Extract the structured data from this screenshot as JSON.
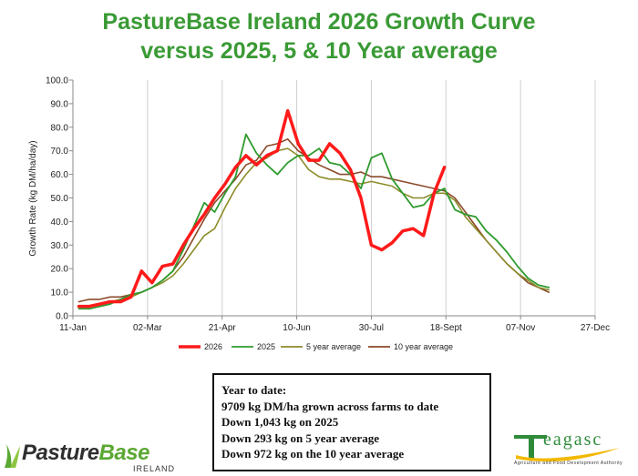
{
  "chart_data": {
    "type": "line",
    "title_line1": "PastureBase Ireland 2026 Growth Curve",
    "title_line2": "versus 2025, 5 & 10 Year average",
    "ylabel": "Growth Rate (kg DM/ha/day)",
    "xlabel": "",
    "ylim": [
      0,
      100
    ],
    "y_ticks": [
      "0.0",
      "10.0",
      "20.0",
      "30.0",
      "40.0",
      "50.0",
      "60.0",
      "70.0",
      "80.0",
      "90.0",
      "100.0"
    ],
    "x_ticks": [
      "11-Jan",
      "02-Mar",
      "21-Apr",
      "10-Jun",
      "30-Jul",
      "18-Sept",
      "07-Nov",
      "27-Dec"
    ],
    "grid": "vertical",
    "legend_position": "bottom",
    "series": [
      {
        "name": "2026",
        "color": "#ff1a1a",
        "width": 3.5,
        "x": [
          "2026-01-15",
          "2026-01-22",
          "2026-01-29",
          "2026-02-05",
          "2026-02-12",
          "2026-02-19",
          "2026-02-26",
          "2026-03-05",
          "2026-03-12",
          "2026-03-19",
          "2026-03-26",
          "2026-04-02",
          "2026-04-09",
          "2026-04-16",
          "2026-04-23",
          "2026-04-30",
          "2026-05-07",
          "2026-05-14",
          "2026-05-21",
          "2026-05-28",
          "2026-06-04",
          "2026-06-11",
          "2026-06-18",
          "2026-06-25",
          "2026-07-02",
          "2026-07-09",
          "2026-07-16",
          "2026-07-23",
          "2026-07-30",
          "2026-08-06",
          "2026-08-13",
          "2026-08-20",
          "2026-08-27",
          "2026-09-03",
          "2026-09-10",
          "2026-09-17"
        ],
        "values": [
          4,
          4,
          5,
          6,
          6,
          8,
          19,
          14,
          21,
          22,
          30,
          37,
          43,
          50,
          56,
          63,
          68,
          64,
          68,
          70,
          87,
          73,
          66,
          66,
          73,
          69,
          62,
          50,
          30,
          28,
          31,
          36,
          37,
          34,
          52,
          63
        ]
      },
      {
        "name": "2025",
        "color": "#2e9b2e",
        "width": 1.8,
        "x": [
          "2026-01-15",
          "2026-01-22",
          "2026-01-29",
          "2026-02-05",
          "2026-02-12",
          "2026-02-19",
          "2026-02-26",
          "2026-03-05",
          "2026-03-12",
          "2026-03-19",
          "2026-03-26",
          "2026-04-02",
          "2026-04-09",
          "2026-04-16",
          "2026-04-23",
          "2026-04-30",
          "2026-05-07",
          "2026-05-14",
          "2026-05-21",
          "2026-05-28",
          "2026-06-04",
          "2026-06-11",
          "2026-06-18",
          "2026-06-25",
          "2026-07-02",
          "2026-07-09",
          "2026-07-16",
          "2026-07-23",
          "2026-07-30",
          "2026-08-06",
          "2026-08-13",
          "2026-08-20",
          "2026-08-27",
          "2026-09-03",
          "2026-09-10",
          "2026-09-17",
          "2026-09-24",
          "2026-10-01",
          "2026-10-08",
          "2026-10-15",
          "2026-10-22",
          "2026-10-29",
          "2026-11-05",
          "2026-11-12",
          "2026-11-19",
          "2026-11-26"
        ],
        "values": [
          3,
          3,
          4,
          5,
          7,
          9,
          10,
          12,
          15,
          19,
          28,
          38,
          48,
          44,
          52,
          59,
          77,
          69,
          64,
          60,
          65,
          68,
          68,
          71,
          65,
          64,
          60,
          54,
          67,
          69,
          58,
          52,
          46,
          47,
          52,
          54,
          45,
          43,
          42,
          36,
          32,
          27,
          21,
          16,
          13,
          12
        ]
      },
      {
        "name": "5 year average",
        "color": "#8c8c2a",
        "width": 1.6,
        "x": [
          "2026-01-15",
          "2026-01-22",
          "2026-01-29",
          "2026-02-05",
          "2026-02-12",
          "2026-02-19",
          "2026-02-26",
          "2026-03-05",
          "2026-03-12",
          "2026-03-19",
          "2026-03-26",
          "2026-04-02",
          "2026-04-09",
          "2026-04-16",
          "2026-04-23",
          "2026-04-30",
          "2026-05-07",
          "2026-05-14",
          "2026-05-21",
          "2026-05-28",
          "2026-06-04",
          "2026-06-11",
          "2026-06-18",
          "2026-06-25",
          "2026-07-02",
          "2026-07-09",
          "2026-07-16",
          "2026-07-23",
          "2026-07-30",
          "2026-08-06",
          "2026-08-13",
          "2026-08-20",
          "2026-08-27",
          "2026-09-03",
          "2026-09-10",
          "2026-09-17",
          "2026-09-24",
          "2026-10-01",
          "2026-10-08",
          "2026-10-15",
          "2026-10-22",
          "2026-10-29",
          "2026-11-05",
          "2026-11-12",
          "2026-11-19",
          "2026-11-26"
        ],
        "values": [
          4,
          4,
          5,
          6,
          7,
          8,
          10,
          12,
          14,
          17,
          22,
          28,
          34,
          37,
          46,
          54,
          60,
          65,
          67,
          70,
          71,
          68,
          62,
          59,
          58,
          58,
          57,
          56,
          57,
          56,
          55,
          52,
          50,
          50,
          52,
          52,
          49,
          42,
          37,
          32,
          27,
          22,
          18,
          15,
          12,
          11
        ]
      },
      {
        "name": "10 year average",
        "color": "#8b4a2a",
        "width": 1.6,
        "x": [
          "2026-01-15",
          "2026-01-22",
          "2026-01-29",
          "2026-02-05",
          "2026-02-12",
          "2026-02-19",
          "2026-02-26",
          "2026-03-05",
          "2026-03-12",
          "2026-03-19",
          "2026-03-26",
          "2026-04-02",
          "2026-04-09",
          "2026-04-16",
          "2026-04-23",
          "2026-04-30",
          "2026-05-07",
          "2026-05-14",
          "2026-05-21",
          "2026-05-28",
          "2026-06-04",
          "2026-06-11",
          "2026-06-18",
          "2026-06-25",
          "2026-07-02",
          "2026-07-09",
          "2026-07-16",
          "2026-07-23",
          "2026-07-30",
          "2026-08-06",
          "2026-08-13",
          "2026-08-20",
          "2026-08-27",
          "2026-09-03",
          "2026-09-10",
          "2026-09-17",
          "2026-09-24",
          "2026-10-01",
          "2026-10-08",
          "2026-10-15",
          "2026-10-22",
          "2026-10-29",
          "2026-11-05",
          "2026-11-12",
          "2026-11-19",
          "2026-11-26"
        ],
        "values": [
          6,
          7,
          7,
          8,
          8,
          9,
          10,
          12,
          15,
          19,
          25,
          33,
          41,
          48,
          53,
          58,
          64,
          66,
          72,
          73,
          75,
          70,
          67,
          64,
          62,
          60,
          60,
          61,
          59,
          59,
          58,
          57,
          56,
          55,
          54,
          53,
          50,
          44,
          38,
          32,
          27,
          22,
          18,
          14,
          12,
          10
        ]
      }
    ]
  },
  "summary": {
    "heading": "Year to date:",
    "line1": "9709 kg DM/ha grown across farms to date",
    "line2": "Down 1,043 kg on 2025",
    "line3": "Down 293 kg on 5 year average",
    "line4": "Down 972 kg on the 10 year average"
  },
  "logos": {
    "pasturebase_part1": "Pasture",
    "pasturebase_part2": "Base",
    "pasturebase_sub": "IRELAND",
    "teagasc_word": "eagasc",
    "teagasc_sub": "Agriculture and Food Development Authority"
  }
}
